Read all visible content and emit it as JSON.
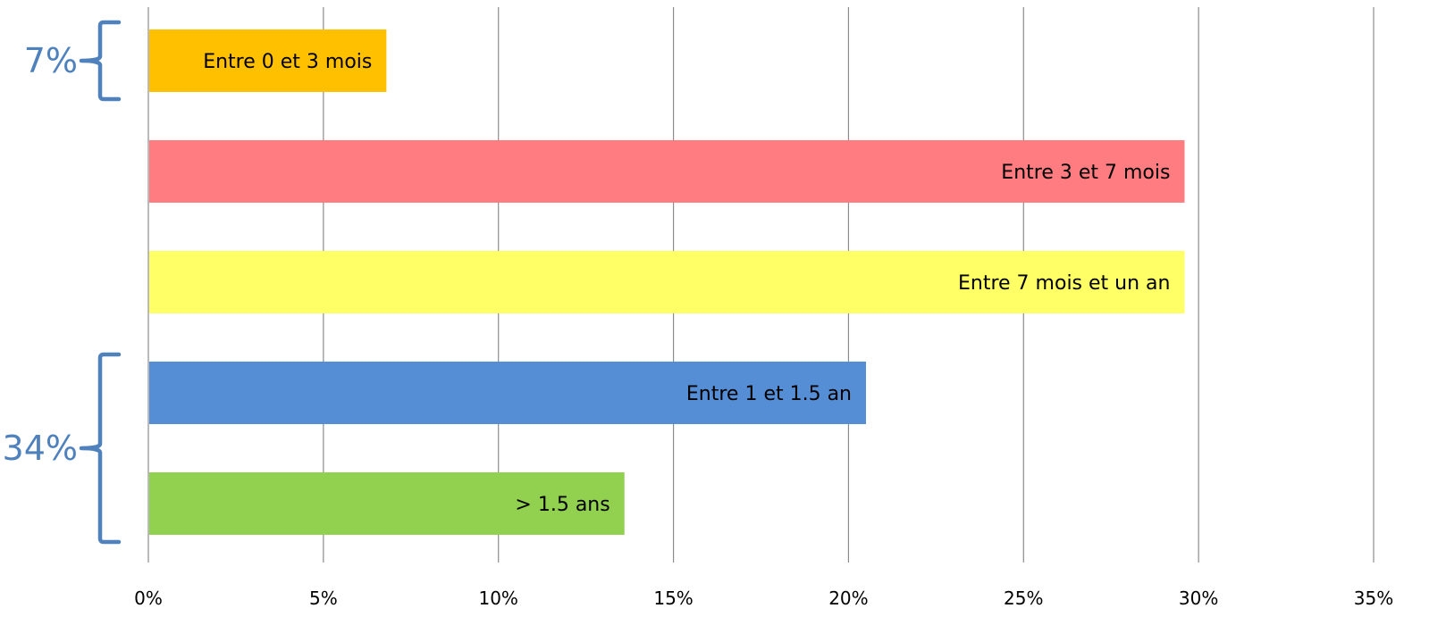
{
  "chart_data": {
    "type": "bar",
    "orientation": "horizontal",
    "categories": [
      "Entre 0 et 3 mois",
      "Entre 3 et 7 mois",
      "Entre 7 mois et un an",
      "Entre 1 et 1.5 an",
      "> 1.5 ans"
    ],
    "values": [
      6.8,
      29.6,
      29.6,
      20.5,
      13.6
    ],
    "colors": [
      "#FFC000",
      "#FF7C80",
      "#FFFF66",
      "#558ED5",
      "#92D050"
    ],
    "xlim": [
      0,
      35
    ],
    "x_ticks": [
      "0%",
      "5%",
      "10%",
      "15%",
      "20%",
      "25%",
      "30%",
      "35%"
    ],
    "grid": "vertical",
    "title": "",
    "xlabel": "",
    "ylabel": "",
    "annotations": [
      {
        "label": "7%",
        "covers": [
          "Entre 0 et 3 mois"
        ],
        "color": "#4F81BD"
      },
      {
        "label": "34%",
        "covers": [
          "Entre 1 et 1.5 an",
          "> 1.5 ans"
        ],
        "color": "#4F81BD"
      }
    ]
  }
}
